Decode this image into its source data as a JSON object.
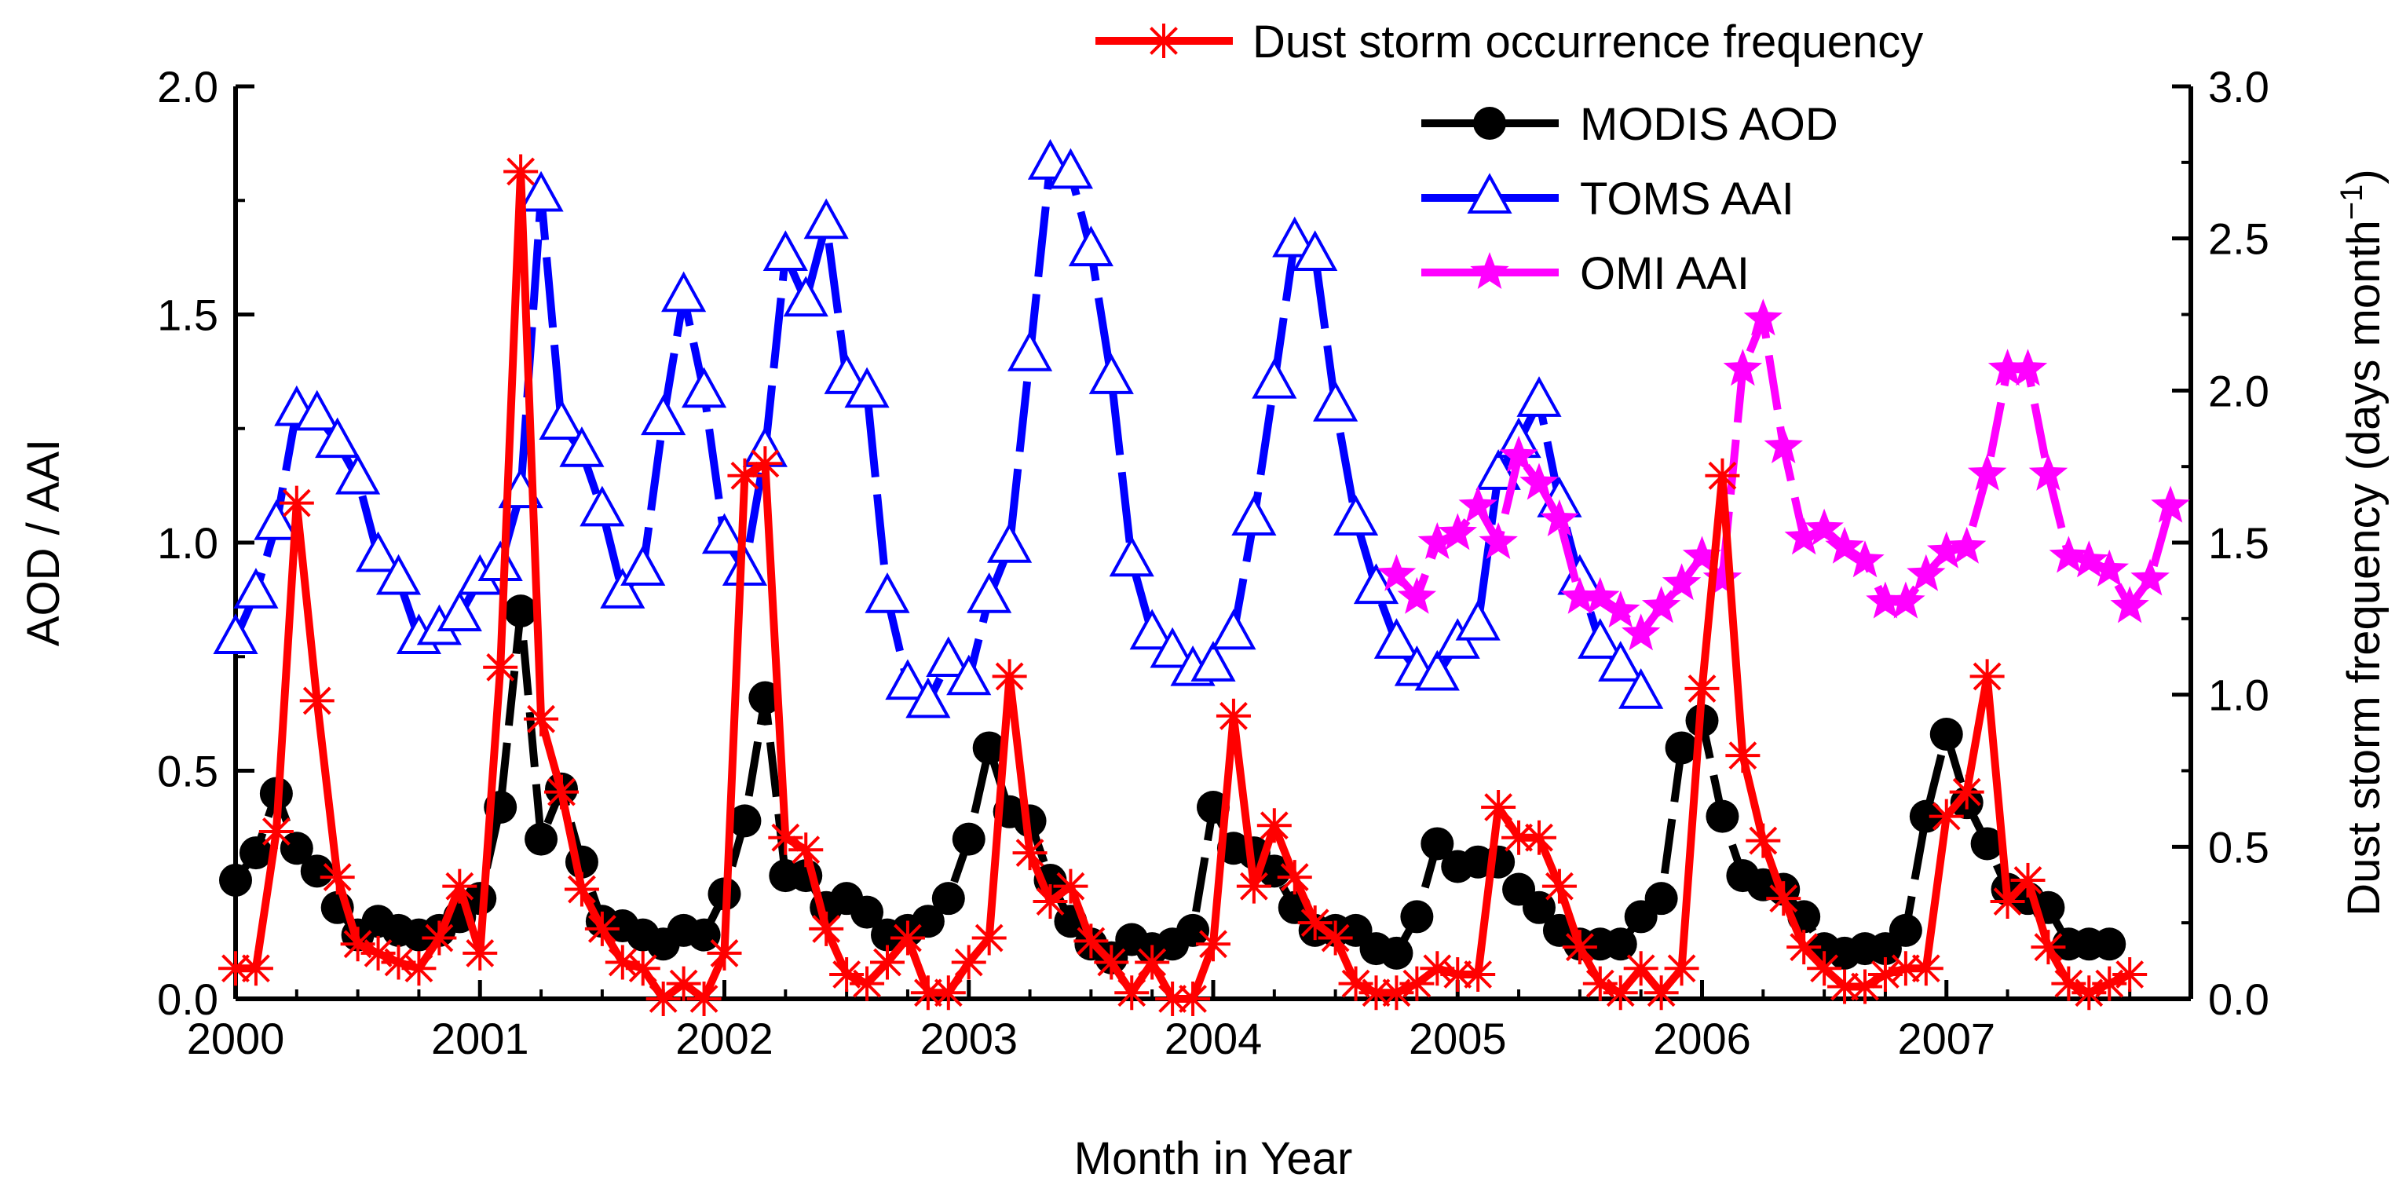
{
  "chart_data": {
    "type": "line",
    "xlabel": "Month in Year",
    "ylabel_left": "AOD / AAI",
    "ylabel_right_main": "Dust storm frequency (days month",
    "ylabel_right_sup": "−1",
    "ylabel_right_close": ")",
    "x_range": [
      2000,
      2008
    ],
    "x_ticks": [
      "2000",
      "2001",
      "2002",
      "2003",
      "2004",
      "2005",
      "2006",
      "2007"
    ],
    "left_range": [
      0,
      2
    ],
    "left_ticks": [
      "0.0",
      "0.5",
      "1.0",
      "1.5",
      "2.0"
    ],
    "right_range": [
      0,
      3
    ],
    "right_ticks": [
      "0.0",
      "0.5",
      "1.0",
      "1.5",
      "2.0",
      "2.5",
      "3.0"
    ],
    "series": [
      {
        "name": "MODIS AOD",
        "axis": "left",
        "color": "#000000",
        "marker": "circle",
        "start": 2000.0,
        "values": [
          0.26,
          0.32,
          0.45,
          0.33,
          0.28,
          0.2,
          0.14,
          0.17,
          0.15,
          0.14,
          0.15,
          0.18,
          0.22,
          0.42,
          0.85,
          0.35,
          0.46,
          0.3,
          0.17,
          0.16,
          0.14,
          0.12,
          0.15,
          0.14,
          0.23,
          0.39,
          0.66,
          0.27,
          0.27,
          0.2,
          0.22,
          0.19,
          0.14,
          0.15,
          0.17,
          0.22,
          0.35,
          0.55,
          0.41,
          0.39,
          0.26,
          0.17,
          0.12,
          0.09,
          0.13,
          0.11,
          0.12,
          0.15,
          0.42,
          0.33,
          0.32,
          0.28,
          0.2,
          0.15,
          0.15,
          0.15,
          0.11,
          0.1,
          0.18,
          0.34,
          0.29,
          0.3,
          0.3,
          0.24,
          0.2,
          0.15,
          0.12,
          0.12,
          0.12,
          0.18,
          0.22,
          0.55,
          0.61,
          0.4,
          0.27,
          0.25,
          0.24,
          0.18,
          0.11,
          0.1,
          0.11,
          0.11,
          0.15,
          0.4,
          0.58,
          0.43,
          0.34,
          0.24,
          0.22,
          0.2,
          0.12,
          0.12,
          0.12
        ]
      },
      {
        "name": "TOMS AAI",
        "axis": "left",
        "color": "#0000ff",
        "marker": "triangle",
        "start": 2000.0,
        "values": [
          0.79,
          0.89,
          1.04,
          1.29,
          1.28,
          1.22,
          1.14,
          0.97,
          0.92,
          0.79,
          0.81,
          0.84,
          0.92,
          0.95,
          1.11,
          1.76,
          1.26,
          1.2,
          1.07,
          0.89,
          0.94,
          1.27,
          1.54,
          1.33,
          1.01,
          0.94,
          1.2,
          1.63,
          1.53,
          1.7,
          1.36,
          1.33,
          0.88,
          0.69,
          0.65,
          0.74,
          0.7,
          0.88,
          0.99,
          1.41,
          1.83,
          1.81,
          1.64,
          1.36,
          0.96,
          0.8,
          0.76,
          0.72,
          0.73,
          0.8,
          1.05,
          1.35,
          1.66,
          1.63,
          1.3,
          1.05,
          0.9,
          0.78,
          0.72,
          0.71,
          0.78,
          0.82,
          1.15,
          1.22,
          1.31,
          1.09,
          0.92,
          0.78,
          0.73,
          0.67
        ]
      },
      {
        "name": "OMI AAI",
        "axis": "left",
        "color": "#ff00ff",
        "marker": "star",
        "start": 2004.75,
        "values": [
          0.93,
          0.88,
          1.0,
          1.02,
          1.08,
          1.0,
          1.19,
          1.13,
          1.05,
          0.88,
          0.88,
          0.85,
          0.8,
          0.86,
          0.91,
          0.97,
          0.92,
          1.38,
          1.49,
          1.21,
          1.01,
          1.03,
          0.99,
          0.96,
          0.87,
          0.87,
          0.93,
          0.98,
          0.99,
          1.15,
          1.38,
          1.38,
          1.15,
          0.97,
          0.96,
          0.94,
          0.86,
          0.92,
          1.08
        ]
      },
      {
        "name": "Dust storm occurrence frequency",
        "axis": "right",
        "color": "#ff0000",
        "marker": "asterisk",
        "start": 2000.0,
        "values": [
          0.1,
          0.1,
          0.55,
          1.63,
          0.98,
          0.4,
          0.18,
          0.15,
          0.12,
          0.1,
          0.2,
          0.37,
          0.15,
          1.09,
          2.72,
          0.92,
          0.68,
          0.36,
          0.23,
          0.12,
          0.1,
          0.0,
          0.05,
          0.0,
          0.15,
          1.72,
          1.76,
          0.53,
          0.49,
          0.23,
          0.08,
          0.05,
          0.12,
          0.2,
          0.02,
          0.02,
          0.12,
          0.2,
          1.06,
          0.48,
          0.32,
          0.37,
          0.19,
          0.12,
          0.02,
          0.12,
          0.0,
          0.0,
          0.18,
          0.93,
          0.37,
          0.57,
          0.4,
          0.25,
          0.2,
          0.05,
          0.02,
          0.02,
          0.05,
          0.1,
          0.08,
          0.08,
          0.63,
          0.53,
          0.53,
          0.37,
          0.17,
          0.05,
          0.02,
          0.1,
          0.02,
          0.1,
          1.02,
          1.72,
          0.8,
          0.52,
          0.33,
          0.17,
          0.1,
          0.04,
          0.04,
          0.08,
          0.1,
          0.1,
          0.6,
          0.68,
          1.06,
          0.32,
          0.39,
          0.17,
          0.05,
          0.02,
          0.05,
          0.08
        ]
      }
    ],
    "legend": [
      {
        "label": "Dust storm occurrence frequency",
        "series": 3
      },
      {
        "label": "MODIS AOD",
        "series": 0
      },
      {
        "label": "TOMS AAI",
        "series": 1
      },
      {
        "label": "OMI AAI",
        "series": 2
      }
    ]
  }
}
